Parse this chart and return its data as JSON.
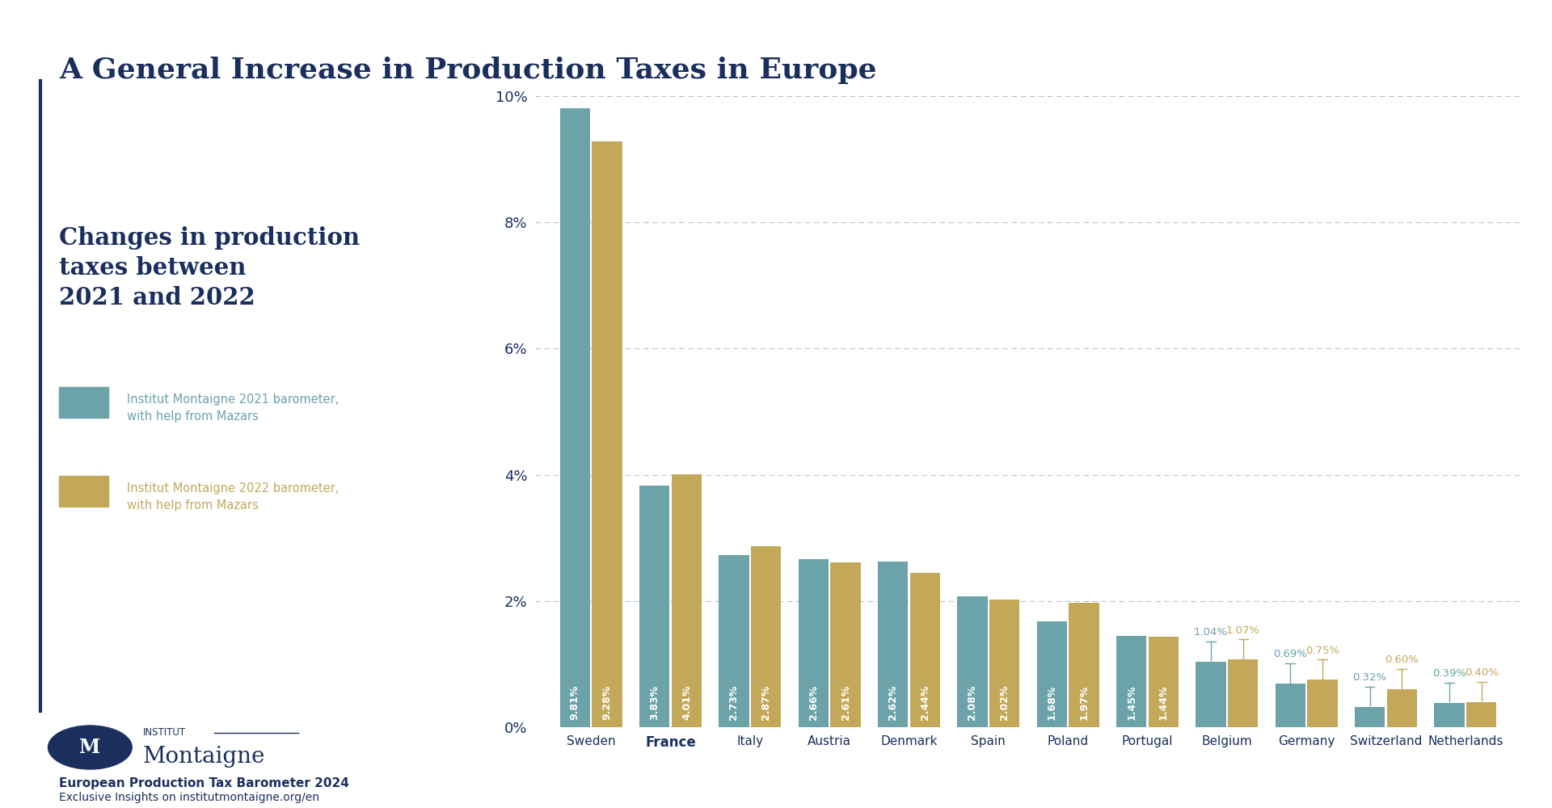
{
  "title": "A General Increase in Production Taxes in Europe",
  "subtitle_left": "Changes in production\ntaxes between\n2021 and 2022",
  "legend_2021": "Institut Montaigne 2021 barometer,\nwith help from Mazars",
  "legend_2022": "Institut Montaigne 2022 barometer,\nwith help from Mazars",
  "footer_bold": "European Production Tax Barometer 2024",
  "footer_normal": "Exclusive Insights on institutmontaigne.org/en",
  "categories": [
    "Sweden",
    "France",
    "Italy",
    "Austria",
    "Denmark",
    "Spain",
    "Poland",
    "Portugal",
    "Belgium",
    "Germany",
    "Switzerland",
    "Netherlands"
  ],
  "bold_categories": [
    "France"
  ],
  "values_2021": [
    9.81,
    3.83,
    2.73,
    2.66,
    2.62,
    2.08,
    1.68,
    1.45,
    1.04,
    0.69,
    0.32,
    0.39
  ],
  "values_2022": [
    9.28,
    4.01,
    2.87,
    2.61,
    2.44,
    2.02,
    1.97,
    1.44,
    1.07,
    0.75,
    0.6,
    0.4
  ],
  "color_2021": "#6BA3A8",
  "color_2022": "#C4A85A",
  "label_color_2021": "#6BA3A8",
  "label_color_2022": "#C4A85A",
  "label_color_inside": "#ffffff",
  "background_color": "#ffffff",
  "title_color": "#1a2f5e",
  "subtitle_color": "#1a2f5e",
  "grid_color": "#a8c4d4",
  "ylim_max": 10.5,
  "yticks": [
    0,
    2,
    4,
    6,
    8,
    10
  ],
  "ytick_labels": [
    "0%",
    "2%",
    "4%",
    "6%",
    "8%",
    "10%"
  ],
  "bar_width": 0.38,
  "bar_gap": 0.025,
  "outside_label_threshold": 1.1,
  "accentline_color": "#1a2f5e",
  "logo_color": "#1a2f5e"
}
